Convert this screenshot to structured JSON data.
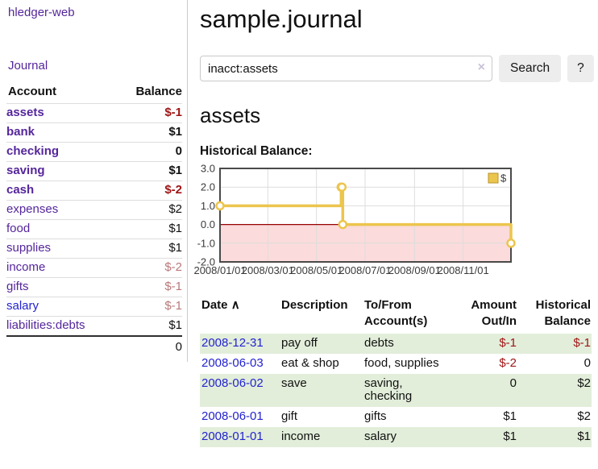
{
  "sidebar": {
    "brand": "hledger-web",
    "nav_journal": "Journal",
    "accounts": {
      "header_account": "Account",
      "header_balance": "Balance",
      "rows": [
        {
          "name": "assets",
          "balance": "$-1",
          "depth": 1,
          "matched": true,
          "tone": "negative"
        },
        {
          "name": "bank",
          "balance": "$1",
          "depth": 2,
          "matched": true,
          "tone": "normal"
        },
        {
          "name": "checking",
          "balance": "0",
          "depth": 3,
          "matched": true,
          "tone": "normal"
        },
        {
          "name": "saving",
          "balance": "$1",
          "depth": 3,
          "matched": true,
          "tone": "normal"
        },
        {
          "name": "cash",
          "balance": "$-2",
          "depth": 2,
          "matched": true,
          "tone": "negative"
        },
        {
          "name": "expenses",
          "balance": "$2",
          "depth": 1,
          "matched": false,
          "tone": "normal"
        },
        {
          "name": "food",
          "balance": "$1",
          "depth": 2,
          "matched": false,
          "tone": "normal"
        },
        {
          "name": "supplies",
          "balance": "$1",
          "depth": 2,
          "matched": false,
          "tone": "normal"
        },
        {
          "name": "income",
          "balance": "$-2",
          "depth": 1,
          "matched": false,
          "tone": "negative-soft"
        },
        {
          "name": "gifts",
          "balance": "$-1",
          "depth": 2,
          "matched": false,
          "tone": "negative-soft"
        },
        {
          "name": "salary",
          "balance": "$-1",
          "depth": 2,
          "matched": false,
          "tone": "negative-soft",
          "link_state": "unvisited"
        },
        {
          "name": "liabilities:debts",
          "balance": "$1",
          "depth": 1,
          "matched": false,
          "tone": "normal"
        }
      ],
      "total": "0"
    }
  },
  "main": {
    "title": "sample.journal",
    "search": {
      "value": "inacct:assets",
      "clear_icon": "×",
      "button_label": "Search",
      "help_label": "?"
    },
    "account_heading": "assets",
    "chart_title": "Historical Balance:"
  },
  "chart_data": {
    "type": "line",
    "style": "step-after",
    "title": "Historical Balance",
    "series": [
      {
        "name": "$",
        "color": "#ecc54d",
        "points": [
          {
            "date": "2008-01-01",
            "value": 1
          },
          {
            "date": "2008-06-01",
            "value": 2
          },
          {
            "date": "2008-06-02",
            "value": 2
          },
          {
            "date": "2008-06-03",
            "value": 0
          },
          {
            "date": "2008-12-31",
            "value": -1
          }
        ]
      }
    ],
    "x_domain": [
      "2008-01-01",
      "2008-12-31"
    ],
    "x_ticks": [
      "2008/01/01",
      "2008/03/01",
      "2008/05/01",
      "2008/07/01",
      "2008/09/01",
      "2008/11/01"
    ],
    "y_ticks": [
      3.0,
      2.0,
      1.0,
      0.0,
      -1.0,
      -2.0
    ],
    "ylim": [
      -2,
      3
    ],
    "grid": true,
    "legend": {
      "label": "$",
      "position": "top-right"
    },
    "negative_region_color": "#fbdbdb",
    "zero_line_color": "#990000"
  },
  "register": {
    "headers": {
      "date": "Date",
      "sort_icon": "∧",
      "description": "Description",
      "accounts": "To/From Account(s)",
      "amount": "Amount Out/In",
      "balance": "Historical Balance"
    },
    "rows": [
      {
        "date": "2008-12-31",
        "description": "pay off",
        "accounts": "debts",
        "amount": "$-1",
        "amount_tone": "negative",
        "balance": "$-1",
        "balance_tone": "negative"
      },
      {
        "date": "2008-06-03",
        "description": "eat & shop",
        "accounts": "food, supplies",
        "amount": "$-2",
        "amount_tone": "negative",
        "balance": "0",
        "balance_tone": "normal"
      },
      {
        "date": "2008-06-02",
        "description": "save",
        "accounts": "saving, checking",
        "amount": "0",
        "amount_tone": "normal",
        "balance": "$2",
        "balance_tone": "normal"
      },
      {
        "date": "2008-06-01",
        "description": "gift",
        "accounts": "gifts",
        "amount": "$1",
        "amount_tone": "normal",
        "balance": "$2",
        "balance_tone": "normal"
      },
      {
        "date": "2008-01-01",
        "description": "income",
        "accounts": "salary",
        "amount": "$1",
        "amount_tone": "normal",
        "balance": "$1",
        "balance_tone": "normal"
      }
    ]
  },
  "colors": {
    "accent_purple": "#55269b",
    "link_blue": "#2323cf",
    "negative_strong": "#9e1414",
    "negative_soft": "#b97878",
    "row_stripe_green": "#e2eeda",
    "chart_gold": "#ecc54d",
    "chart_negative_region": "#fbdbdb",
    "chart_zero_line": "#990000",
    "chart_frame": "#4a4a4a"
  }
}
